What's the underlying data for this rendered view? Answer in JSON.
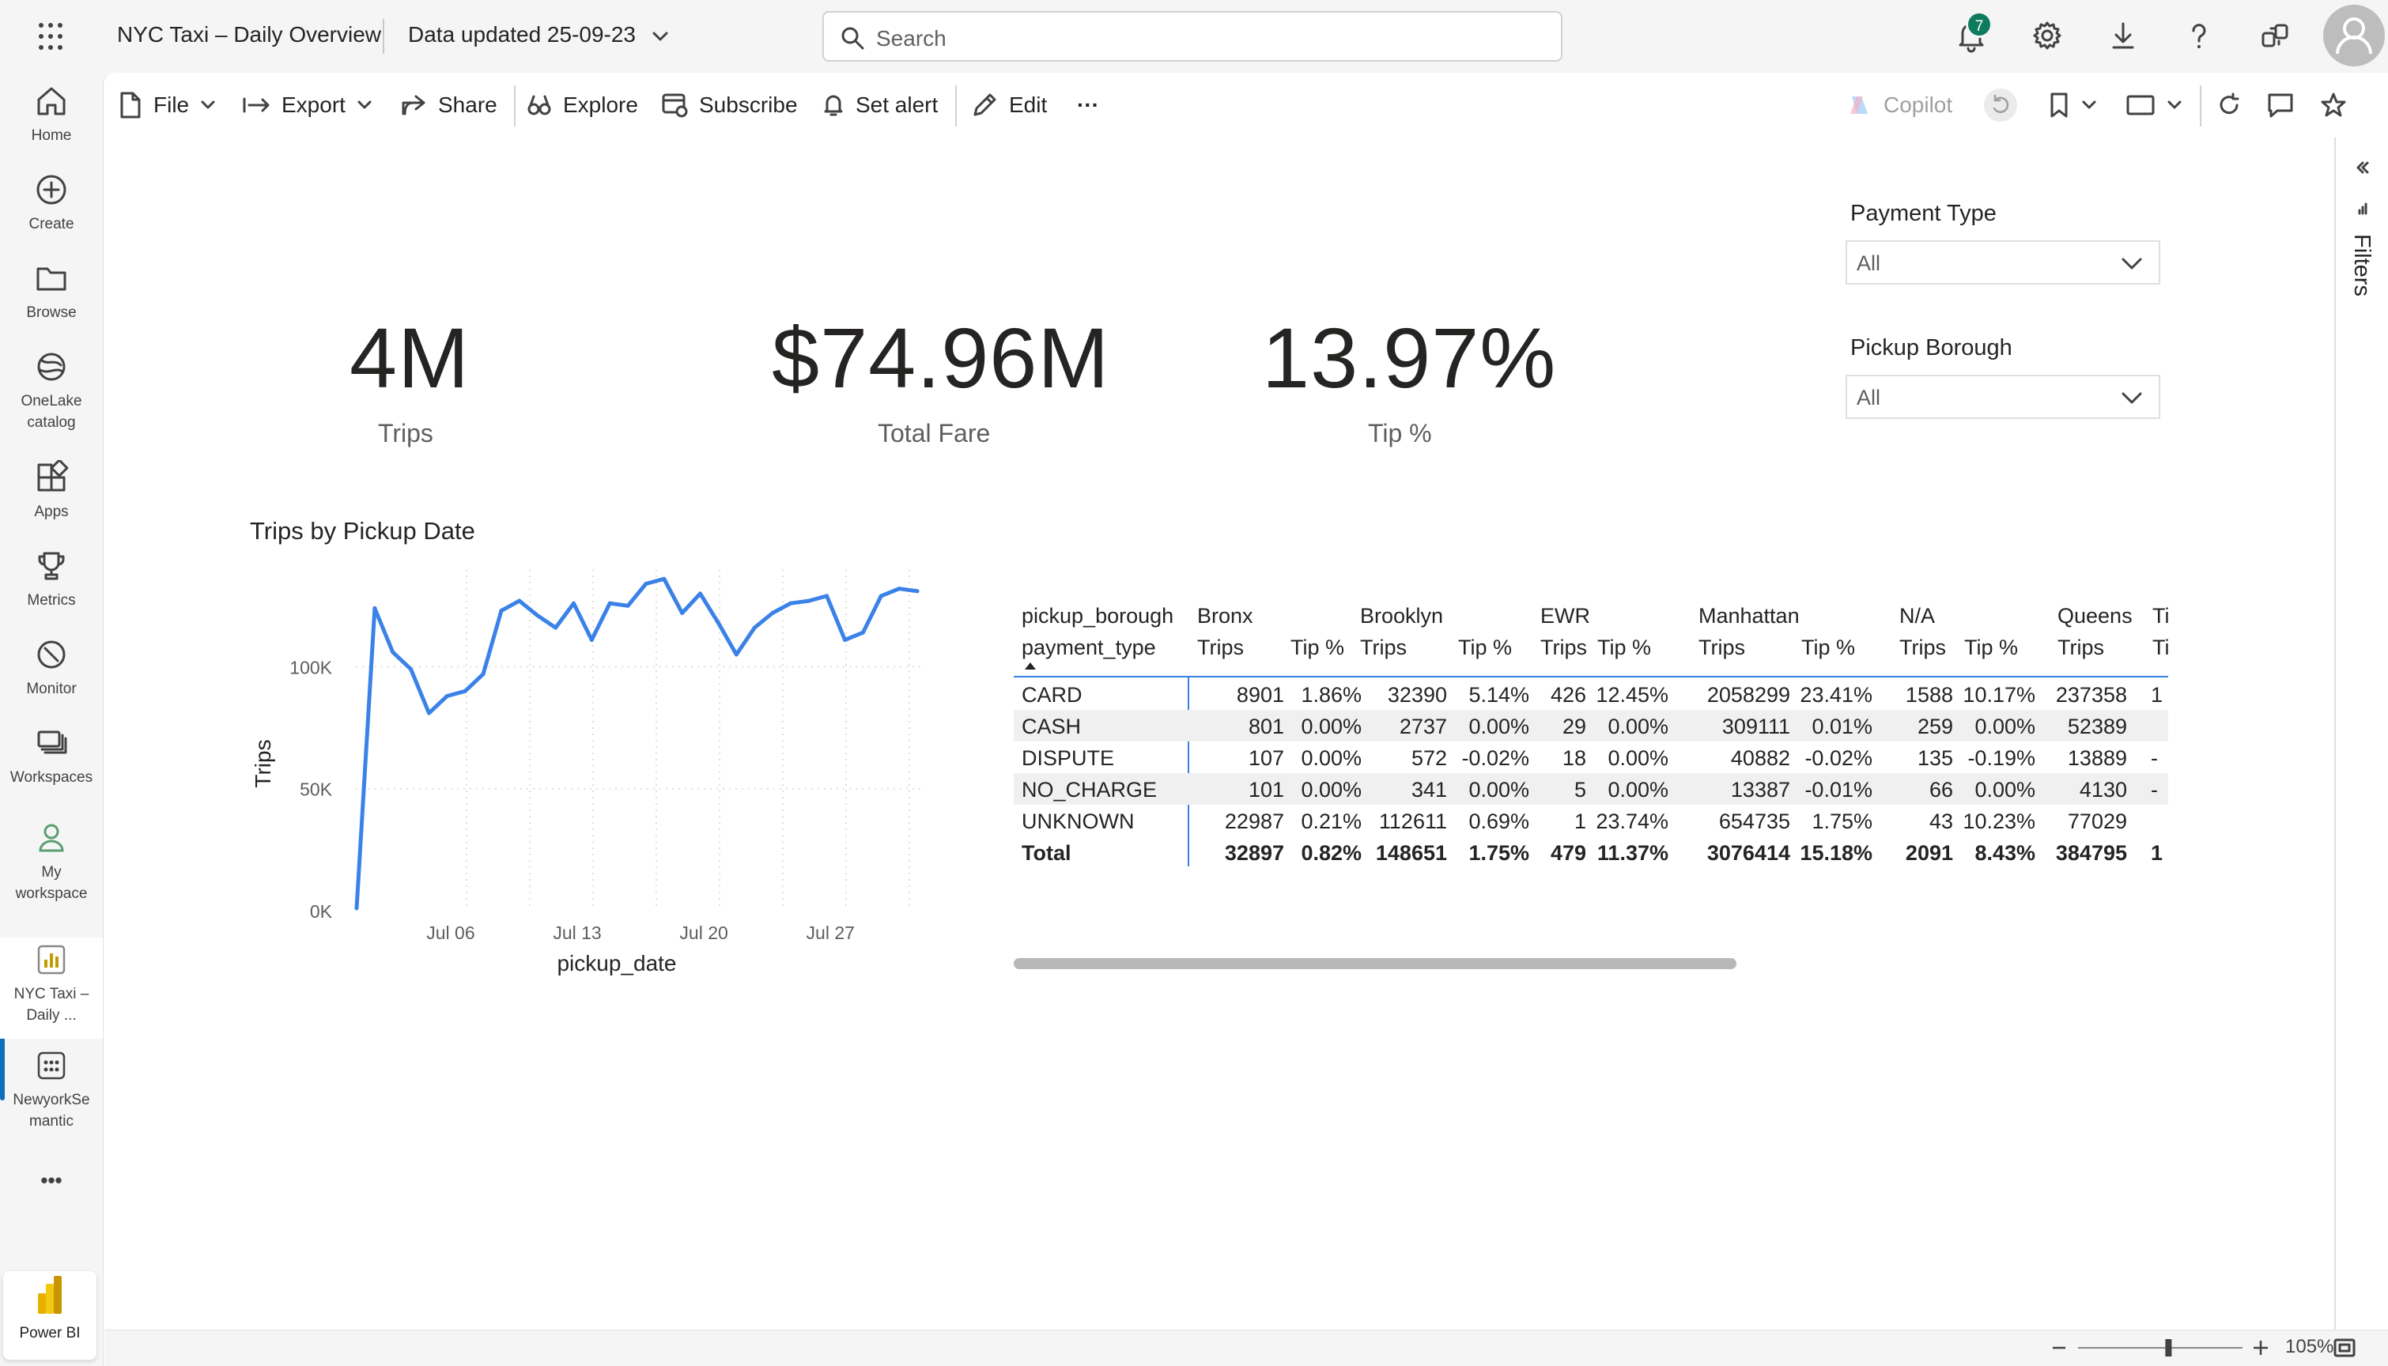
{
  "header": {
    "report_title": "NYC Taxi – Daily Overview",
    "data_updated": "Data updated 25-09-23",
    "search_placeholder": "Search",
    "notification_count": "7"
  },
  "left_nav": {
    "items": [
      {
        "label": "Home",
        "icon": "home-icon"
      },
      {
        "label": "Create",
        "icon": "plus-circle-icon"
      },
      {
        "label": "Browse",
        "icon": "folder-icon"
      },
      {
        "label": "OneLake",
        "label2": "catalog",
        "icon": "onelake-icon"
      },
      {
        "label": "Apps",
        "icon": "apps-icon"
      },
      {
        "label": "Metrics",
        "icon": "trophy-icon"
      },
      {
        "label": "Monitor",
        "icon": "monitor-icon"
      },
      {
        "label": "Workspaces",
        "icon": "workspaces-icon"
      },
      {
        "label": "My",
        "label2": "workspace",
        "icon": "person-icon"
      },
      {
        "label": "NYC Taxi –",
        "label2": "Daily ...",
        "icon": "report-icon"
      },
      {
        "label": "NewyorkSe",
        "label2": "mantic",
        "icon": "semantic-model-icon"
      }
    ],
    "more_label": "•••",
    "powerbi_label": "Power BI"
  },
  "toolbar": {
    "file": "File",
    "export": "Export",
    "share": "Share",
    "explore": "Explore",
    "subscribe": "Subscribe",
    "set_alert": "Set alert",
    "edit": "Edit",
    "more": "···",
    "copilot": "Copilot"
  },
  "kpis": [
    {
      "value": "4M",
      "label": "Trips"
    },
    {
      "value": "$74.96M",
      "label": "Total Fare"
    },
    {
      "value": "13.97%",
      "label": "Tip %"
    }
  ],
  "slicers": [
    {
      "title": "Payment Type",
      "value": "All"
    },
    {
      "title": "Pickup Borough",
      "value": "All"
    }
  ],
  "chart_data": {
    "type": "line",
    "title": "Trips by Pickup Date",
    "xlabel": "pickup_date",
    "ylabel": "Trips",
    "x_ticks": [
      "Jul 06",
      "Jul 13",
      "Jul 20",
      "Jul 27"
    ],
    "y_ticks": [
      "0K",
      "50K",
      "100K"
    ],
    "ylim": [
      0,
      140000
    ],
    "grid": true,
    "color": "#3b82e8",
    "series": [
      {
        "values": [
          1000,
          124000,
          106000,
          99000,
          81000,
          88000,
          90000,
          97000,
          123000,
          127000,
          121000,
          116000,
          126000,
          111000,
          126000,
          125000,
          134000,
          136000,
          122000,
          130000,
          118000,
          105000,
          116000,
          122000,
          126000,
          127000,
          129000,
          111000,
          114000,
          129000,
          132000,
          131000
        ]
      }
    ]
  },
  "matrix": {
    "row_header_1": "pickup_borough",
    "row_header_2": "payment_type",
    "boroughs": [
      "Bronx",
      "Brooklyn",
      "EWR",
      "Manhattan",
      "N/A",
      "Queens",
      "Ti"
    ],
    "measure_trips": "Trips",
    "measure_tip": "Tip %",
    "rows": [
      {
        "label": "CARD",
        "cells": [
          "8901",
          "1.86%",
          "32390",
          "5.14%",
          "426",
          "12.45%",
          "2058299",
          "23.41%",
          "1588",
          "10.17%",
          "237358",
          "1"
        ]
      },
      {
        "label": "CASH",
        "cells": [
          "801",
          "0.00%",
          "2737",
          "0.00%",
          "29",
          "0.00%",
          "309111",
          "0.01%",
          "259",
          "0.00%",
          "52389",
          ""
        ]
      },
      {
        "label": "DISPUTE",
        "cells": [
          "107",
          "0.00%",
          "572",
          "-0.02%",
          "18",
          "0.00%",
          "40882",
          "-0.02%",
          "135",
          "-0.19%",
          "13889",
          "-"
        ]
      },
      {
        "label": "NO_CHARGE",
        "cells": [
          "101",
          "0.00%",
          "341",
          "0.00%",
          "5",
          "0.00%",
          "13387",
          "-0.01%",
          "66",
          "0.00%",
          "4130",
          "-"
        ]
      },
      {
        "label": "UNKNOWN",
        "cells": [
          "22987",
          "0.21%",
          "112611",
          "0.69%",
          "1",
          "23.74%",
          "654735",
          "1.75%",
          "43",
          "10.23%",
          "77029",
          ""
        ]
      },
      {
        "label": "Total",
        "cells": [
          "32897",
          "0.82%",
          "148651",
          "1.75%",
          "479",
          "11.37%",
          "3076414",
          "15.18%",
          "2091",
          "8.43%",
          "384795",
          "1"
        ]
      }
    ]
  },
  "filters_label": "Filters",
  "status": {
    "zoom": "105%",
    "zoom_value": 0.55
  }
}
